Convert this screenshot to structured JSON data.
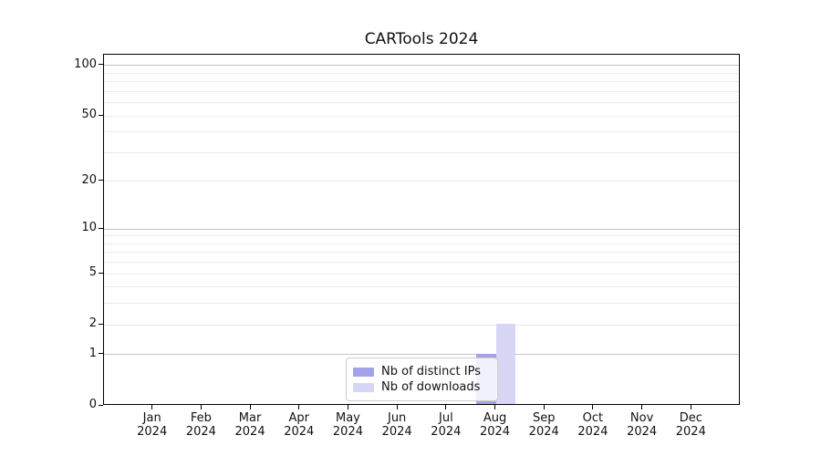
{
  "chart_data": {
    "type": "bar",
    "title": "CARTools 2024",
    "categories": [
      "Jan",
      "Feb",
      "Mar",
      "Apr",
      "May",
      "Jun",
      "Jul",
      "Aug",
      "Sep",
      "Oct",
      "Nov",
      "Dec"
    ],
    "x_year": "2024",
    "series": [
      {
        "name": "Nb of distinct IPs",
        "color": "#a3a3ec",
        "values": [
          0,
          0,
          0,
          0,
          0,
          0,
          0,
          1,
          0,
          0,
          0,
          0
        ]
      },
      {
        "name": "Nb of downloads",
        "color": "#d7d7f5",
        "values": [
          0,
          0,
          0,
          0,
          0,
          0,
          0,
          2,
          0,
          0,
          0,
          0
        ]
      }
    ],
    "y_scale": "log1p",
    "ylim": [
      0,
      100
    ],
    "y_ticks": [
      0,
      1,
      2,
      5,
      10,
      20,
      50,
      100
    ],
    "y_minor_gridlines": [
      3,
      4,
      6,
      7,
      8,
      9,
      30,
      40,
      60,
      70,
      80,
      90
    ],
    "y_major_gridlines": [
      1,
      10,
      100
    ],
    "grid": true,
    "legend_position": "lower center",
    "colors": {
      "major_grid": "#c4c4c4",
      "minor_grid": "#ebebeb",
      "axis": "#000000"
    }
  }
}
